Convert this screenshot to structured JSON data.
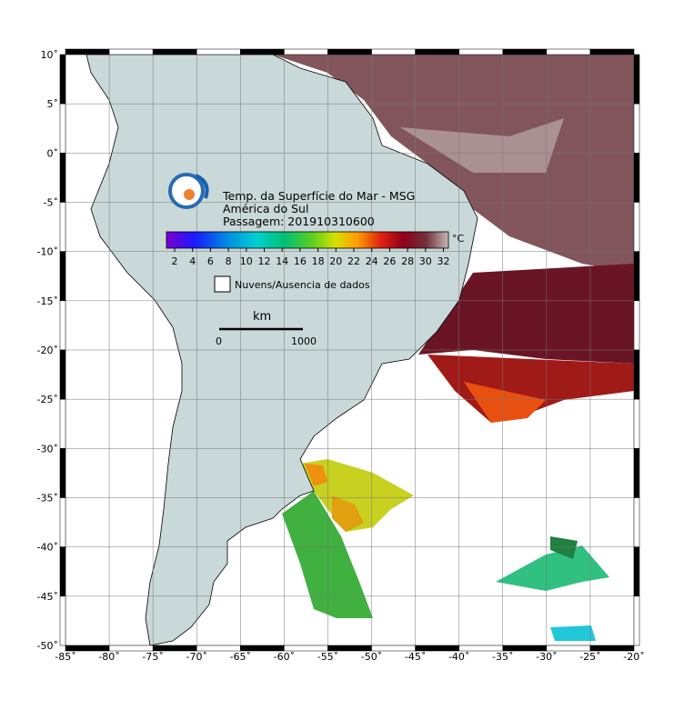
{
  "title": {
    "line1": "Temp. da Superfície do Mar - MSG",
    "line2": "América do Sul",
    "line3": "Passagem: 201910310600"
  },
  "colorbar": {
    "unit": "°C",
    "ticks": [
      "2",
      "4",
      "6",
      "8",
      "10",
      "12",
      "14",
      "16",
      "18",
      "20",
      "22",
      "24",
      "26",
      "28",
      "30",
      "32"
    ]
  },
  "legend": "Nuvens/Ausencia de dados",
  "scale": {
    "unit": "km",
    "start": "0",
    "end": "1000"
  },
  "axes": {
    "lat": [
      "10˚",
      "5˚",
      "0˚",
      "-5˚",
      "-10˚",
      "-15˚",
      "-20˚",
      "-25˚",
      "-30˚",
      "-35˚",
      "-40˚",
      "-45˚",
      "-50˚"
    ],
    "lon": [
      "-85˚",
      "-80˚",
      "-75˚",
      "-70˚",
      "-65˚",
      "-60˚",
      "-55˚",
      "-50˚",
      "-45˚",
      "-40˚",
      "-35˚",
      "-30˚",
      "-25˚",
      "-20˚"
    ]
  }
}
